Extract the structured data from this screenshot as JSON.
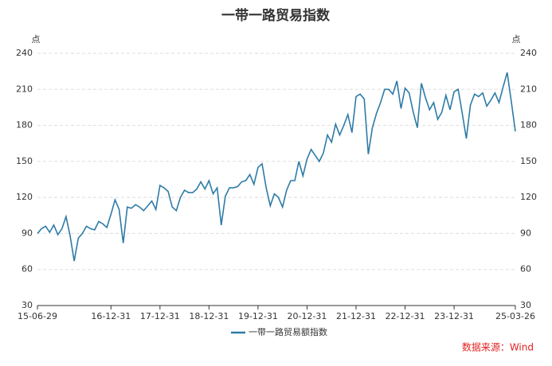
{
  "chart_data": {
    "type": "line",
    "title": "一带一路贸易指数",
    "y_unit": "点",
    "y2_unit": "点",
    "categories": [
      "15-06-29",
      null,
      null,
      null,
      null,
      null,
      null,
      null,
      null,
      null,
      null,
      null,
      null,
      null,
      null,
      null,
      null,
      null,
      "16-12-31",
      null,
      null,
      null,
      null,
      null,
      null,
      null,
      null,
      null,
      null,
      null,
      "17-12-31",
      null,
      null,
      null,
      null,
      null,
      null,
      null,
      null,
      null,
      null,
      null,
      "18-12-31",
      null,
      null,
      null,
      null,
      null,
      null,
      null,
      null,
      null,
      null,
      null,
      "19-12-31",
      null,
      null,
      null,
      null,
      null,
      null,
      null,
      null,
      null,
      null,
      null,
      "20-12-31",
      null,
      null,
      null,
      null,
      null,
      null,
      null,
      null,
      null,
      null,
      null,
      "21-12-31",
      null,
      null,
      null,
      null,
      null,
      null,
      null,
      null,
      null,
      null,
      null,
      "22-12-31",
      null,
      null,
      null,
      null,
      null,
      null,
      null,
      null,
      null,
      null,
      null,
      "23-12-31",
      null,
      null,
      null,
      null,
      null,
      null,
      null,
      null,
      null,
      null,
      null,
      null,
      null,
      null,
      "25-03-26"
    ],
    "series": [
      {
        "name": "一带一路贸易额指数",
        "color": "#2e7ba6",
        "values": [
          90,
          94,
          96,
          91,
          97,
          89,
          94,
          104,
          88,
          67,
          86,
          90,
          96,
          94,
          93,
          100,
          98,
          95,
          106,
          118,
          110,
          82,
          112,
          111,
          114,
          112,
          109,
          113,
          117,
          110,
          130,
          128,
          125,
          112,
          109,
          120,
          126,
          124,
          124,
          127,
          133,
          127,
          134,
          123,
          128,
          97,
          121,
          128,
          128,
          129,
          133,
          134,
          139,
          131,
          145,
          148,
          128,
          113,
          123,
          120,
          112,
          126,
          134,
          134,
          150,
          138,
          152,
          160,
          155,
          150,
          157,
          172,
          166,
          181,
          172,
          180,
          189,
          174,
          204,
          206,
          202,
          156,
          178,
          190,
          199,
          210,
          210,
          206,
          217,
          194,
          211,
          207,
          191,
          178,
          215,
          203,
          193,
          199,
          185,
          191,
          205,
          193,
          208,
          210,
          190,
          169,
          197,
          206,
          204,
          207,
          196,
          201,
          207,
          199,
          212,
          224,
          200,
          175
        ]
      }
    ],
    "ylim": [
      30,
      240
    ],
    "yticks": [
      30,
      60,
      90,
      120,
      150,
      180,
      210,
      240
    ],
    "y2lim": [
      30,
      240
    ],
    "y2ticks": [
      30,
      60,
      90,
      120,
      150,
      180,
      210,
      240
    ],
    "grid": true,
    "source": "数据来源：Wind"
  }
}
